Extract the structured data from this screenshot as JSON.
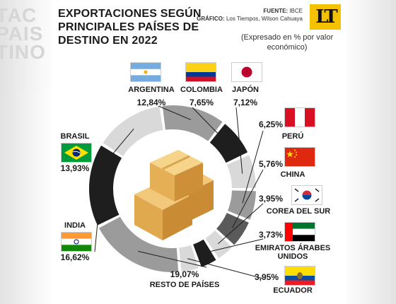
{
  "title": "EXPORTACIONES SEGÚN PRINCIPALES PAÍSES DE DESTINO EN 2022",
  "credits": {
    "source_label": "FUENTE:",
    "source_value": "IBCE",
    "graphic_label": "GRÁFICO:",
    "graphic_value": "Los Tiempos, Wilson Cahuaya"
  },
  "logo_text": "LT",
  "note": "(Expresado en % por valor económico)",
  "background_text": [
    "ТАС",
    "PAIS",
    "TINO"
  ],
  "colors": {
    "dark": "#1e1e1e",
    "mid": "#9b9b9b",
    "light": "#d9d9d9",
    "darkgray": "#5a5a5a",
    "leader": "#1e1e1e"
  },
  "chart_data": {
    "type": "donut",
    "title": "EXPORTACIONES SEGÚN PRINCIPALES PAÍSES DE DESTINO EN 2022",
    "unit": "%",
    "slices": [
      {
        "name": "ARGENTINA",
        "label": "12,84%",
        "value": 12.84,
        "color": "mid",
        "flag": "argentina"
      },
      {
        "name": "COLOMBIA",
        "label": "7,65%",
        "value": 7.65,
        "color": "dark",
        "flag": "colombia"
      },
      {
        "name": "JAPÓN",
        "label": "7,12%",
        "value": 7.12,
        "color": "light",
        "flag": "japan"
      },
      {
        "name": "PERÚ",
        "label": "6,25%",
        "value": 6.25,
        "color": "mid",
        "flag": "peru"
      },
      {
        "name": "CHINA",
        "label": "5,76%",
        "value": 5.76,
        "color": "darkgray",
        "flag": "china"
      },
      {
        "name": "COREA DEL SUR",
        "label": "3,95%",
        "value": 3.95,
        "color": "light",
        "flag": "korea"
      },
      {
        "name": "EMIRATOS ÁRABES UNIDOS",
        "label": "3,73%",
        "value": 3.73,
        "color": "dark",
        "flag": "uae"
      },
      {
        "name": "ECUADOR",
        "label": "3,95%",
        "value": 3.95,
        "color": "light",
        "flag": "ecuador"
      },
      {
        "name": "RESTO DE PAÍSES",
        "label": "19,07%",
        "value": 19.07,
        "color": "mid",
        "flag": null
      },
      {
        "name": "INDIA",
        "label": "16,62%",
        "value": 16.62,
        "color": "dark",
        "flag": "india"
      },
      {
        "name": "BRASIL",
        "label": "13,93%",
        "value": 13.93,
        "color": "light",
        "flag": "brazil"
      }
    ]
  }
}
